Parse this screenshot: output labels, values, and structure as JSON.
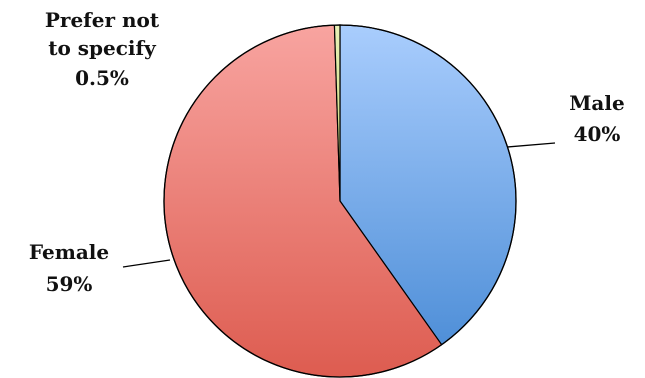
{
  "chart_data": {
    "type": "pie",
    "slices": [
      {
        "label": "Male",
        "value": 40,
        "display_value": "40%",
        "color_light": "#a9cdfd",
        "color_dark": "#4f8fd8"
      },
      {
        "label": "Female",
        "value": 59,
        "display_value": "59%",
        "color_light": "#f8a4a0",
        "color_dark": "#dd5c50"
      },
      {
        "label": "Prefer not to specify",
        "value": 0.5,
        "display_value": "0.5%",
        "color_light": "#e8f1b8",
        "color_dark": "#c6d86e"
      }
    ]
  }
}
